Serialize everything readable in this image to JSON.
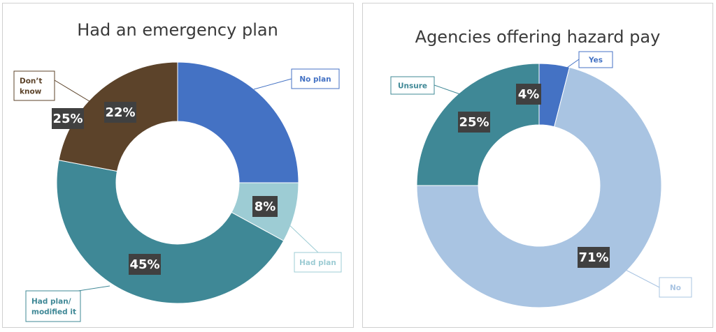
{
  "chart_data": [
    {
      "type": "pie",
      "title": "Had an emergency plan",
      "categories": [
        "No plan",
        "Had plan",
        "Had plan/ modified it",
        "Don’t know"
      ],
      "values": [
        25,
        8,
        45,
        22
      ],
      "value_labels": [
        "25%",
        "8%",
        "45%",
        "22%"
      ],
      "colors": [
        "#4472C4",
        "#9DCCD4",
        "#3F8896",
        "#5C432A"
      ],
      "label_colors": [
        "#4472C4",
        "#9DCCD4",
        "#3F8896",
        "#5C432A"
      ]
    },
    {
      "type": "pie",
      "title": "Agencies offering hazard pay",
      "categories": [
        "Yes",
        "No",
        "Unsure"
      ],
      "values": [
        4,
        71,
        25
      ],
      "value_labels": [
        "4%",
        "71%",
        "25%"
      ],
      "colors": [
        "#4472C4",
        "#A9C4E2",
        "#3F8896"
      ],
      "label_colors": [
        "#4472C4",
        "#A9C4E2",
        "#3F8896"
      ]
    }
  ]
}
